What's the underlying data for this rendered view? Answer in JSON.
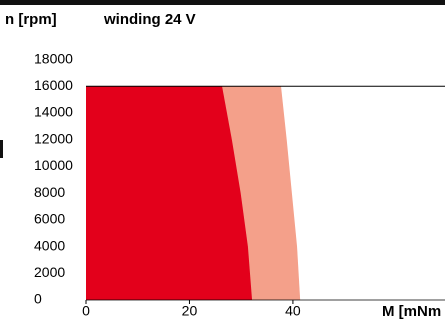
{
  "chart_data": {
    "type": "area",
    "y_label": "n [rpm]",
    "title": "winding 24 V",
    "x_label": "M [mNm",
    "xlim": [
      0,
      69.4
    ],
    "xticks": [
      0,
      20,
      40
    ],
    "ylim": [
      0,
      18000
    ],
    "yticks": [
      0,
      2000,
      4000,
      6000,
      8000,
      10000,
      12000,
      14000,
      16000,
      18000
    ],
    "limit_line": 16000,
    "series": [
      {
        "color": "#f4a08a",
        "x": [
          0,
          37.7,
          38.8,
          39.8,
          40.8,
          41.4
        ],
        "values": [
          16000,
          16000,
          12000,
          8000,
          4000,
          0
        ]
      },
      {
        "color": "#e3001b",
        "x": [
          0,
          26.3,
          28.2,
          29.9,
          31.3,
          32.1
        ],
        "values": [
          16000,
          16000,
          12000,
          8000,
          4000,
          0
        ]
      }
    ]
  }
}
